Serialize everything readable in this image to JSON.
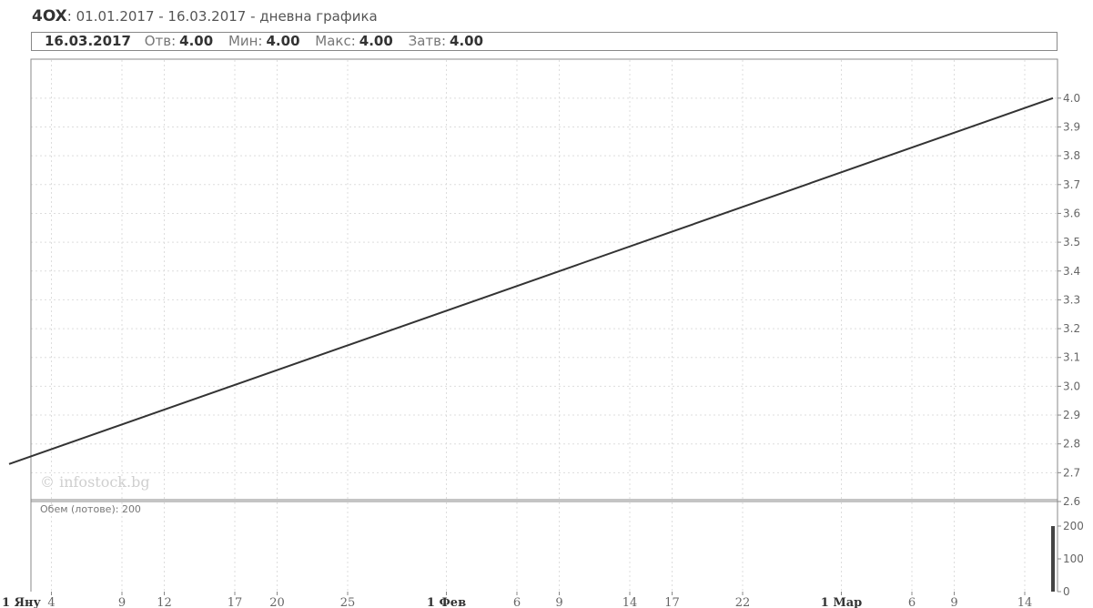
{
  "header": {
    "symbol": "4OX",
    "subtitle": ": 01.01.2017 - 16.03.2017 - дневна графика"
  },
  "infobar": {
    "date": "16.03.2017",
    "open_label": "Отв:",
    "open": "4.00",
    "min_label": "Мин:",
    "min": "4.00",
    "max_label": "Макс:",
    "max": "4.00",
    "close_label": "Затв:",
    "close": "4.00"
  },
  "watermark": "© infostock.bg",
  "volume_label": "Обем (лотове): 200",
  "colors": {
    "line": "#333333",
    "grid": "#dddddd",
    "border": "#888888",
    "volume_bar": "#444444"
  },
  "chart_data": {
    "type": "line",
    "series": [
      {
        "x": [
          "2017-01-01",
          "2017-03-16"
        ],
        "values": [
          2.73,
          4.0
        ]
      }
    ],
    "ylim": [
      2.6,
      4.05
    ],
    "yticks": [
      "4.0",
      "3.9",
      "3.8",
      "3.7",
      "3.6",
      "3.5",
      "3.4",
      "3.3",
      "3.2",
      "3.1",
      "3.0",
      "2.9",
      "2.8",
      "2.7",
      "2.6"
    ],
    "volume": {
      "x": [
        "2017-03-16"
      ],
      "values": [
        200
      ],
      "ylim": [
        0,
        200
      ],
      "yticks": [
        "200",
        "100",
        "0"
      ]
    },
    "xticks": [
      {
        "label": "1 Яну",
        "day": 0,
        "month": true
      },
      {
        "label": "4",
        "day": 3
      },
      {
        "label": "9",
        "day": 8
      },
      {
        "label": "12",
        "day": 11
      },
      {
        "label": "17",
        "day": 16
      },
      {
        "label": "20",
        "day": 19
      },
      {
        "label": "25",
        "day": 24
      },
      {
        "label": "1 Фев",
        "day": 31,
        "month": true
      },
      {
        "label": "6",
        "day": 36
      },
      {
        "label": "9",
        "day": 39
      },
      {
        "label": "14",
        "day": 44
      },
      {
        "label": "17",
        "day": 47
      },
      {
        "label": "22",
        "day": 52
      },
      {
        "label": "1 Мар",
        "day": 59,
        "month": true
      },
      {
        "label": "6",
        "day": 64
      },
      {
        "label": "9",
        "day": 67
      },
      {
        "label": "14",
        "day": 72
      }
    ],
    "grid": true
  }
}
